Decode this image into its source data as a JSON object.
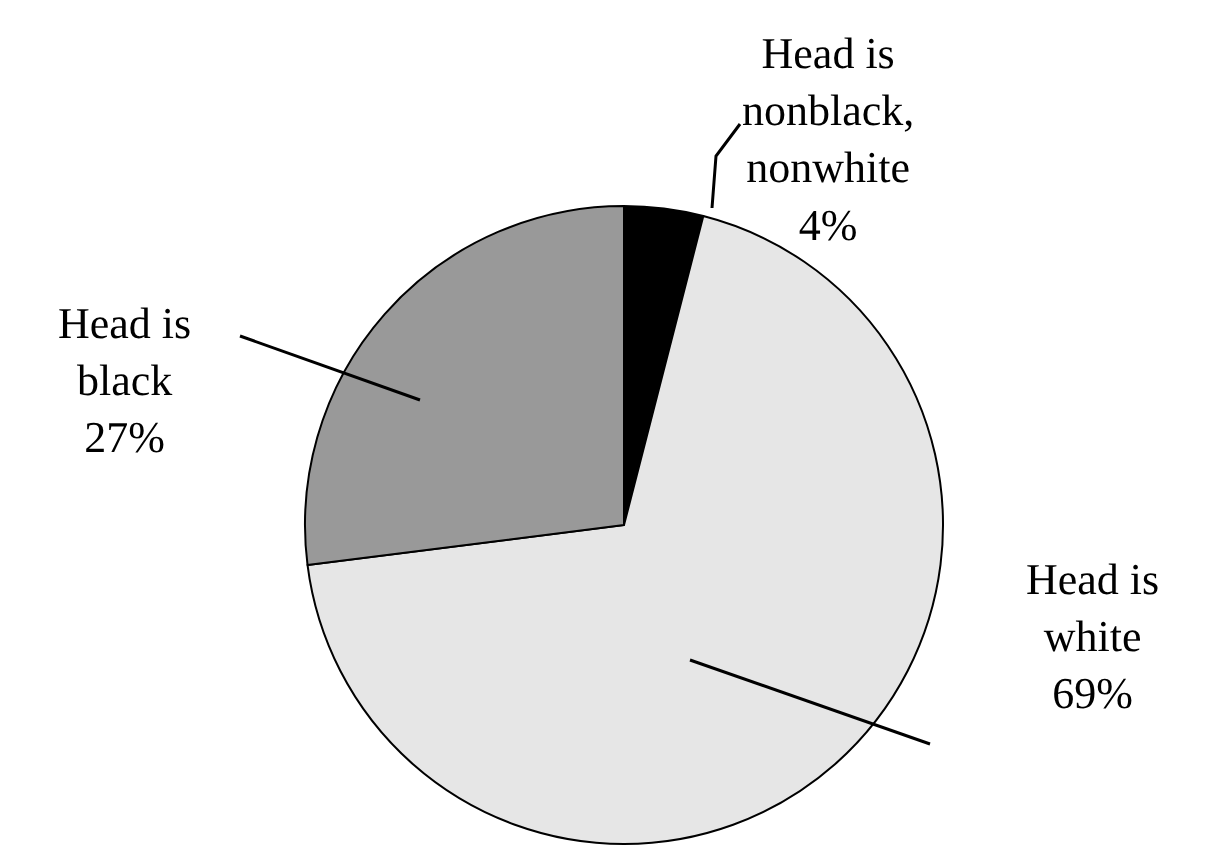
{
  "chart_data": {
    "type": "pie",
    "categories": [
      "Head is nonblack, nonwhite",
      "Head is white",
      "Head is black"
    ],
    "values": [
      4,
      69,
      27
    ],
    "value_labels": [
      "4%",
      "69%",
      "27%"
    ],
    "colors": [
      "#000000",
      "#e6e6e6",
      "#999999"
    ]
  }
}
